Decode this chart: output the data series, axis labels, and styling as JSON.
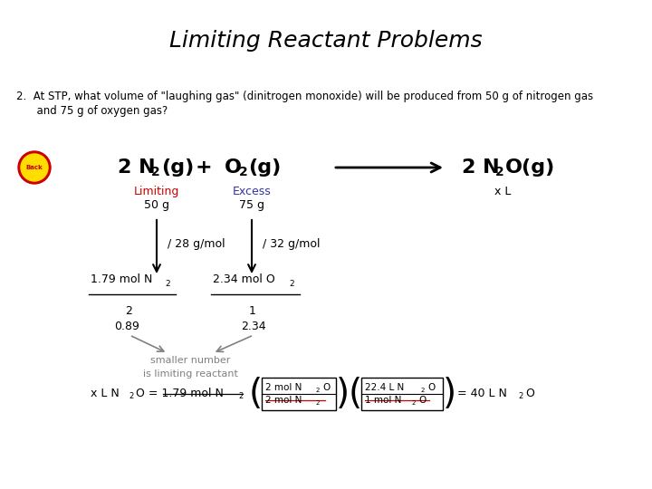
{
  "title": "Limiting Reactant Problems",
  "bg": "#ffffff",
  "title_fs": 18,
  "problem_line1": "2.  At STP, what volume of \"laughing gas\" (dinitrogen monoxide) will be produced from 50 g of nitrogen gas",
  "problem_line2": "      and 75 g of oxygen gas?"
}
